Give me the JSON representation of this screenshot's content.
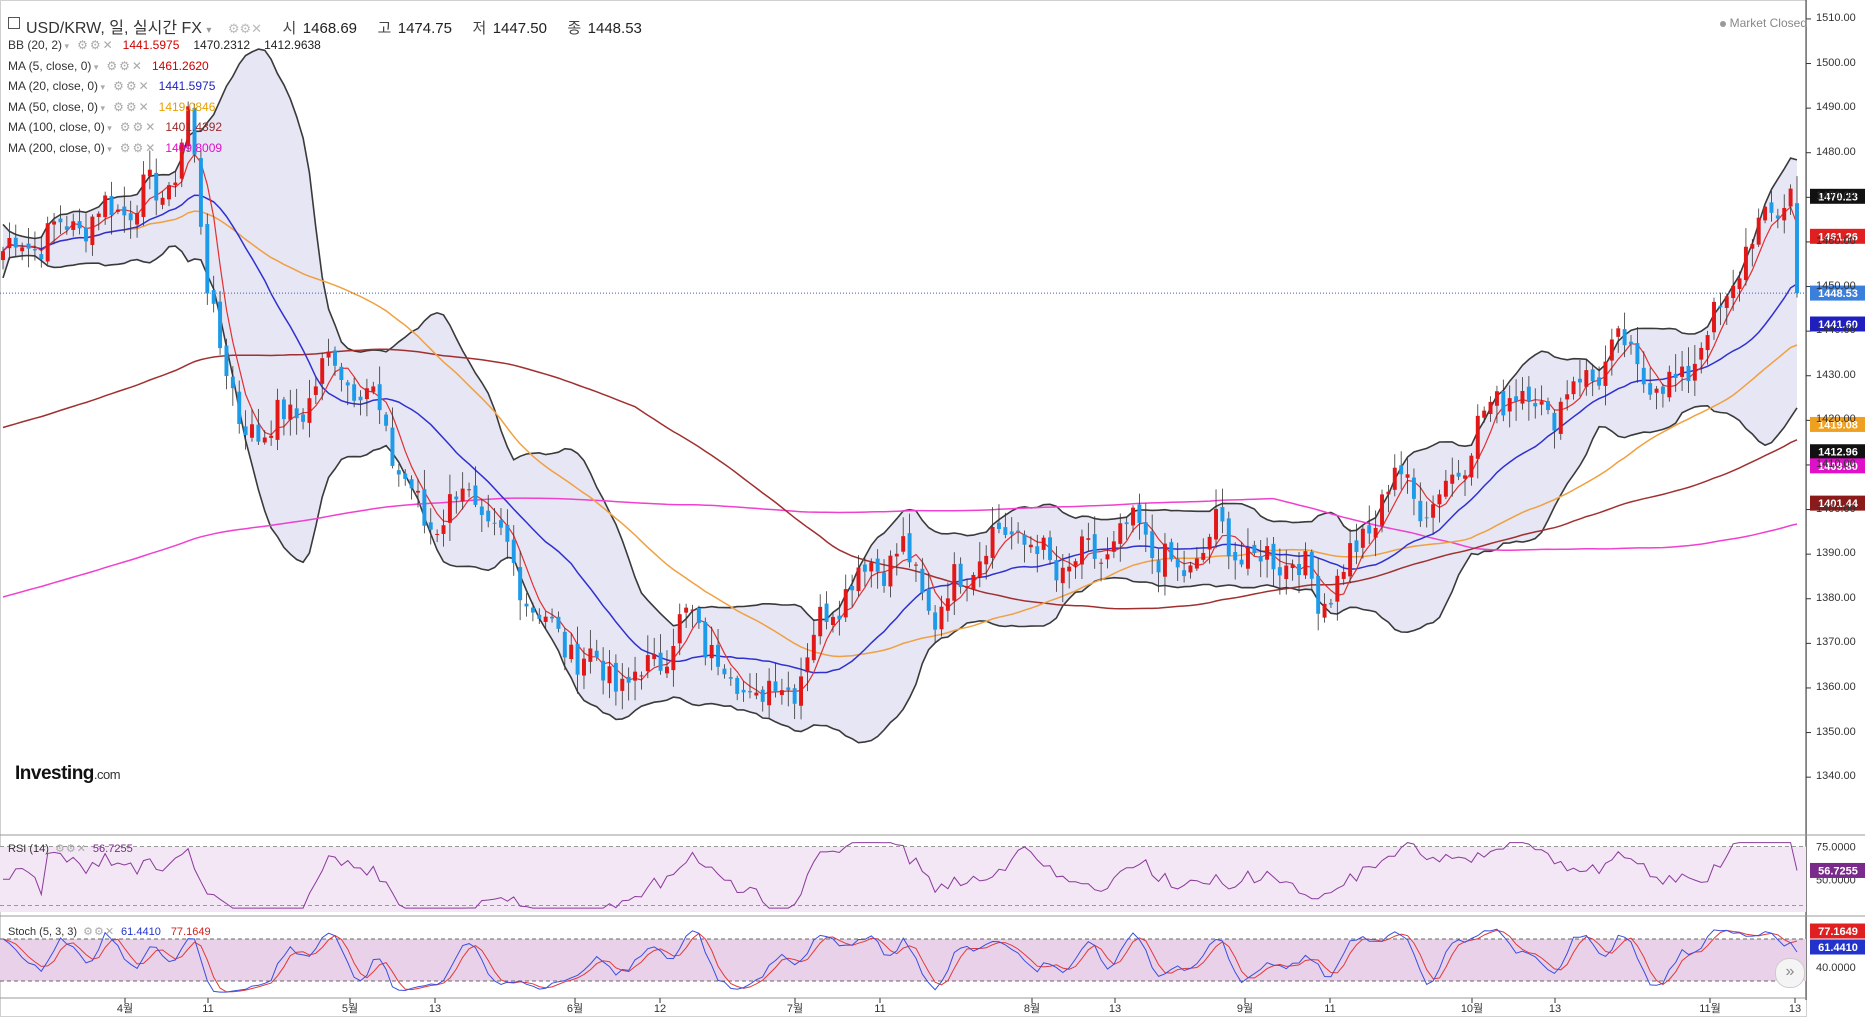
{
  "header": {
    "collapse_icon": "minus-square-icon",
    "symbol": "USD/KRW, 일, 실시간 FX",
    "open_label": "시",
    "open_value": "1468.69",
    "high_label": "고",
    "high_value": "1474.75",
    "low_label": "저",
    "low_value": "1447.50",
    "close_label": "종",
    "close_value": "1448.53",
    "market_status": "Market Closed"
  },
  "indicators": [
    {
      "name": "BB (20, 2)",
      "values": [
        "1441.5975",
        "1470.2312",
        "1412.9638"
      ],
      "colors": [
        "#cc0000",
        "#222222",
        "#222222"
      ]
    },
    {
      "name": "MA (5, close, 0)",
      "values": [
        "1461.2620"
      ],
      "colors": [
        "#cc0000"
      ]
    },
    {
      "name": "MA (20, close, 0)",
      "values": [
        "1441.5975"
      ],
      "colors": [
        "#1f1fbf"
      ]
    },
    {
      "name": "MA (50, close, 0)",
      "values": [
        "1419.0846"
      ],
      "colors": [
        "#e8a000"
      ]
    },
    {
      "name": "MA (100, close, 0)",
      "values": [
        "1401.4392"
      ],
      "colors": [
        "#9b2a2a"
      ]
    },
    {
      "name": "MA (200, close, 0)",
      "values": [
        "1409.8009"
      ],
      "colors": [
        "#e010c8"
      ]
    }
  ],
  "logo": {
    "brand": "Investing",
    "domain": ".com"
  },
  "price_axis": {
    "ticks": [
      "1510.00",
      "1500.00",
      "1490.00",
      "1480.00",
      "1470.00",
      "1460.00",
      "1450.00",
      "1440.00",
      "1430.00",
      "1420.00",
      "1410.00",
      "1400.00",
      "1390.00",
      "1380.00",
      "1370.00",
      "1360.00",
      "1350.00",
      "1340.00"
    ]
  },
  "price_tags": [
    {
      "text": "1470.23",
      "value": 1470.23,
      "bg": "#111111"
    },
    {
      "text": "1461.26",
      "value": 1461.26,
      "bg": "#e02020"
    },
    {
      "text": "1448.53",
      "value": 1448.53,
      "bg": "#3a7fdc"
    },
    {
      "text": "1441.60",
      "value": 1441.6,
      "bg": "#1f1fbf"
    },
    {
      "text": "1419.08",
      "value": 1419.08,
      "bg": "#f0a020"
    },
    {
      "text": "1412.96",
      "value": 1412.96,
      "bg": "#111111"
    },
    {
      "text": "1409.80",
      "value": 1409.8,
      "bg": "#e010c8"
    },
    {
      "text": "1401.44",
      "value": 1401.44,
      "bg": "#8b1a1a"
    }
  ],
  "time_axis": [
    "4월",
    "11",
    "5월",
    "13",
    "6월",
    "12",
    "7월",
    "11",
    "8월",
    "13",
    "9월",
    "11",
    "10월",
    "13",
    "11월",
    "13"
  ],
  "rsi": {
    "label": "RSI (14)",
    "value": "56.7255",
    "ticks": [
      "75.0000",
      "50.0000"
    ],
    "tag": "56.7255"
  },
  "stoch": {
    "label": "Stoch (5, 3, 3)",
    "k_value": "61.4410",
    "d_value": "77.1649",
    "ticks": [
      "40.0000"
    ],
    "tags": [
      "77.1649",
      "61.4410"
    ]
  },
  "colors": {
    "up": "#e01818",
    "down": "#1e9be8",
    "band_fill": "#e6e6f4",
    "bb": "#3a3a3a",
    "ma5": "#e03030",
    "ma20": "#3030d0",
    "ma50": "#f0a040",
    "ma100": "#a03030",
    "ma200": "#f040d0"
  },
  "chart_data": {
    "type": "candlestick",
    "title": "USD/KRW, 일, 실시간 FX",
    "interval": "daily",
    "ylim": [
      1336,
      1512
    ],
    "x_ticks": [
      "4월",
      "11",
      "5월",
      "13",
      "6월",
      "12",
      "7월",
      "11",
      "8월",
      "13",
      "9월",
      "11",
      "10월",
      "13",
      "11월",
      "13"
    ],
    "last_bar": {
      "open": 1468.69,
      "high": 1474.75,
      "low": 1447.5,
      "close": 1448.53
    },
    "price_path_keypoints": [
      {
        "date": "3월 말",
        "close": 1460
      },
      {
        "date": "4월",
        "close": 1465
      },
      {
        "date": "4월 9일",
        "close": 1484
      },
      {
        "date": "4월 중순",
        "close": 1425
      },
      {
        "date": "5월",
        "close": 1432
      },
      {
        "date": "5월 중순",
        "close": 1400
      },
      {
        "date": "5월 말",
        "close": 1380
      },
      {
        "date": "6월",
        "close": 1360
      },
      {
        "date": "6월 중순",
        "close": 1372
      },
      {
        "date": "7월",
        "close": 1360
      },
      {
        "date": "7월 중순",
        "close": 1386
      },
      {
        "date": "8월",
        "close": 1395
      },
      {
        "date": "8월 중순",
        "close": 1387
      },
      {
        "date": "9월",
        "close": 1392
      },
      {
        "date": "9월 중순",
        "close": 1384
      },
      {
        "date": "10월",
        "close": 1407
      },
      {
        "date": "10월 중순",
        "close": 1427
      },
      {
        "date": "11월",
        "close": 1440
      },
      {
        "date": "11월 중순",
        "close": 1448.53
      }
    ],
    "indicator_last": {
      "bb_mid": 1441.5975,
      "bb_upper": 1470.2312,
      "bb_lower": 1412.9638,
      "ma5": 1461.262,
      "ma20": 1441.5975,
      "ma50": 1419.0846,
      "ma100": 1401.4392,
      "ma200": 1409.8009,
      "rsi14": 56.7255,
      "stoch_k": 61.441,
      "stoch_d": 77.1649
    }
  }
}
